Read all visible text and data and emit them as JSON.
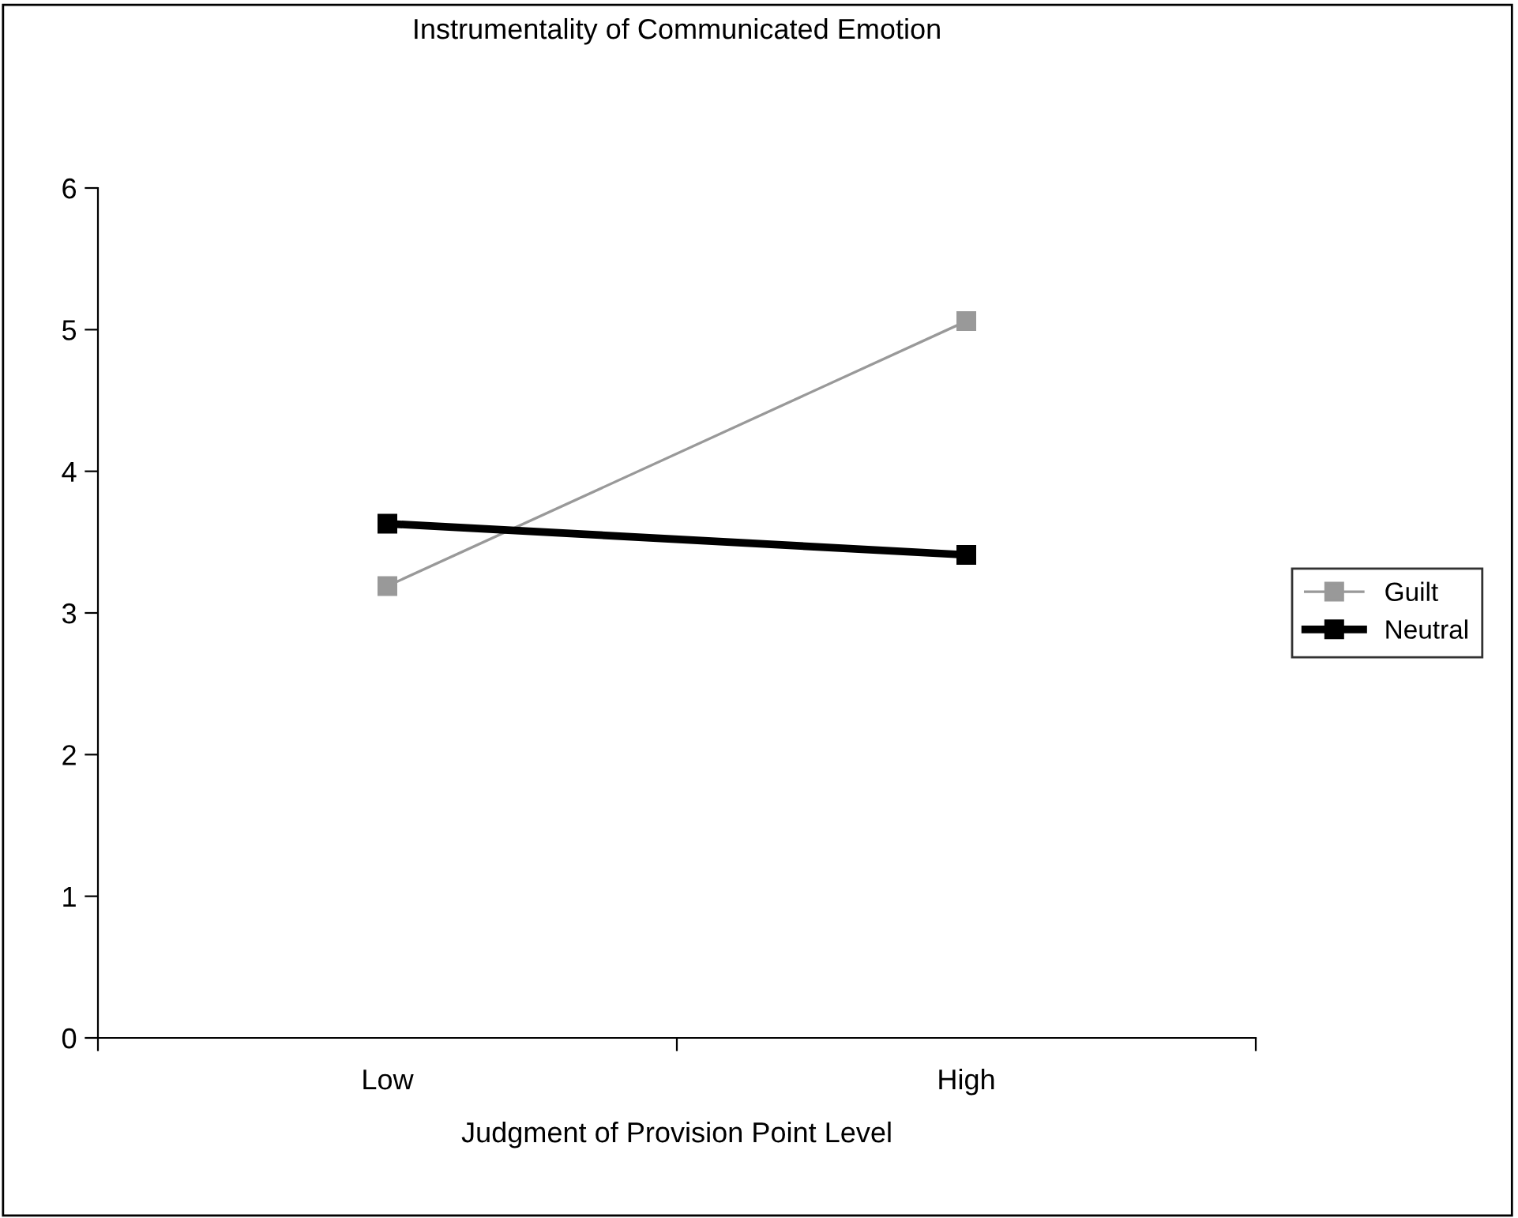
{
  "chart_data": {
    "type": "line",
    "title": "Instrumentality of Communicated Emotion",
    "xlabel": "Judgment of Provision Point Level",
    "categories": [
      "Low",
      "High"
    ],
    "series": [
      {
        "name": "Guilt",
        "color": "#999999",
        "values": [
          3.19,
          5.06
        ]
      },
      {
        "name": "Neutral",
        "color": "#000000",
        "values": [
          3.63,
          3.41
        ]
      }
    ],
    "ylim": [
      0,
      6
    ],
    "yticks": [
      0,
      1,
      2,
      3,
      4,
      5,
      6
    ],
    "grid": false,
    "legend": "right",
    "marker": "square",
    "line_style": "solid"
  }
}
